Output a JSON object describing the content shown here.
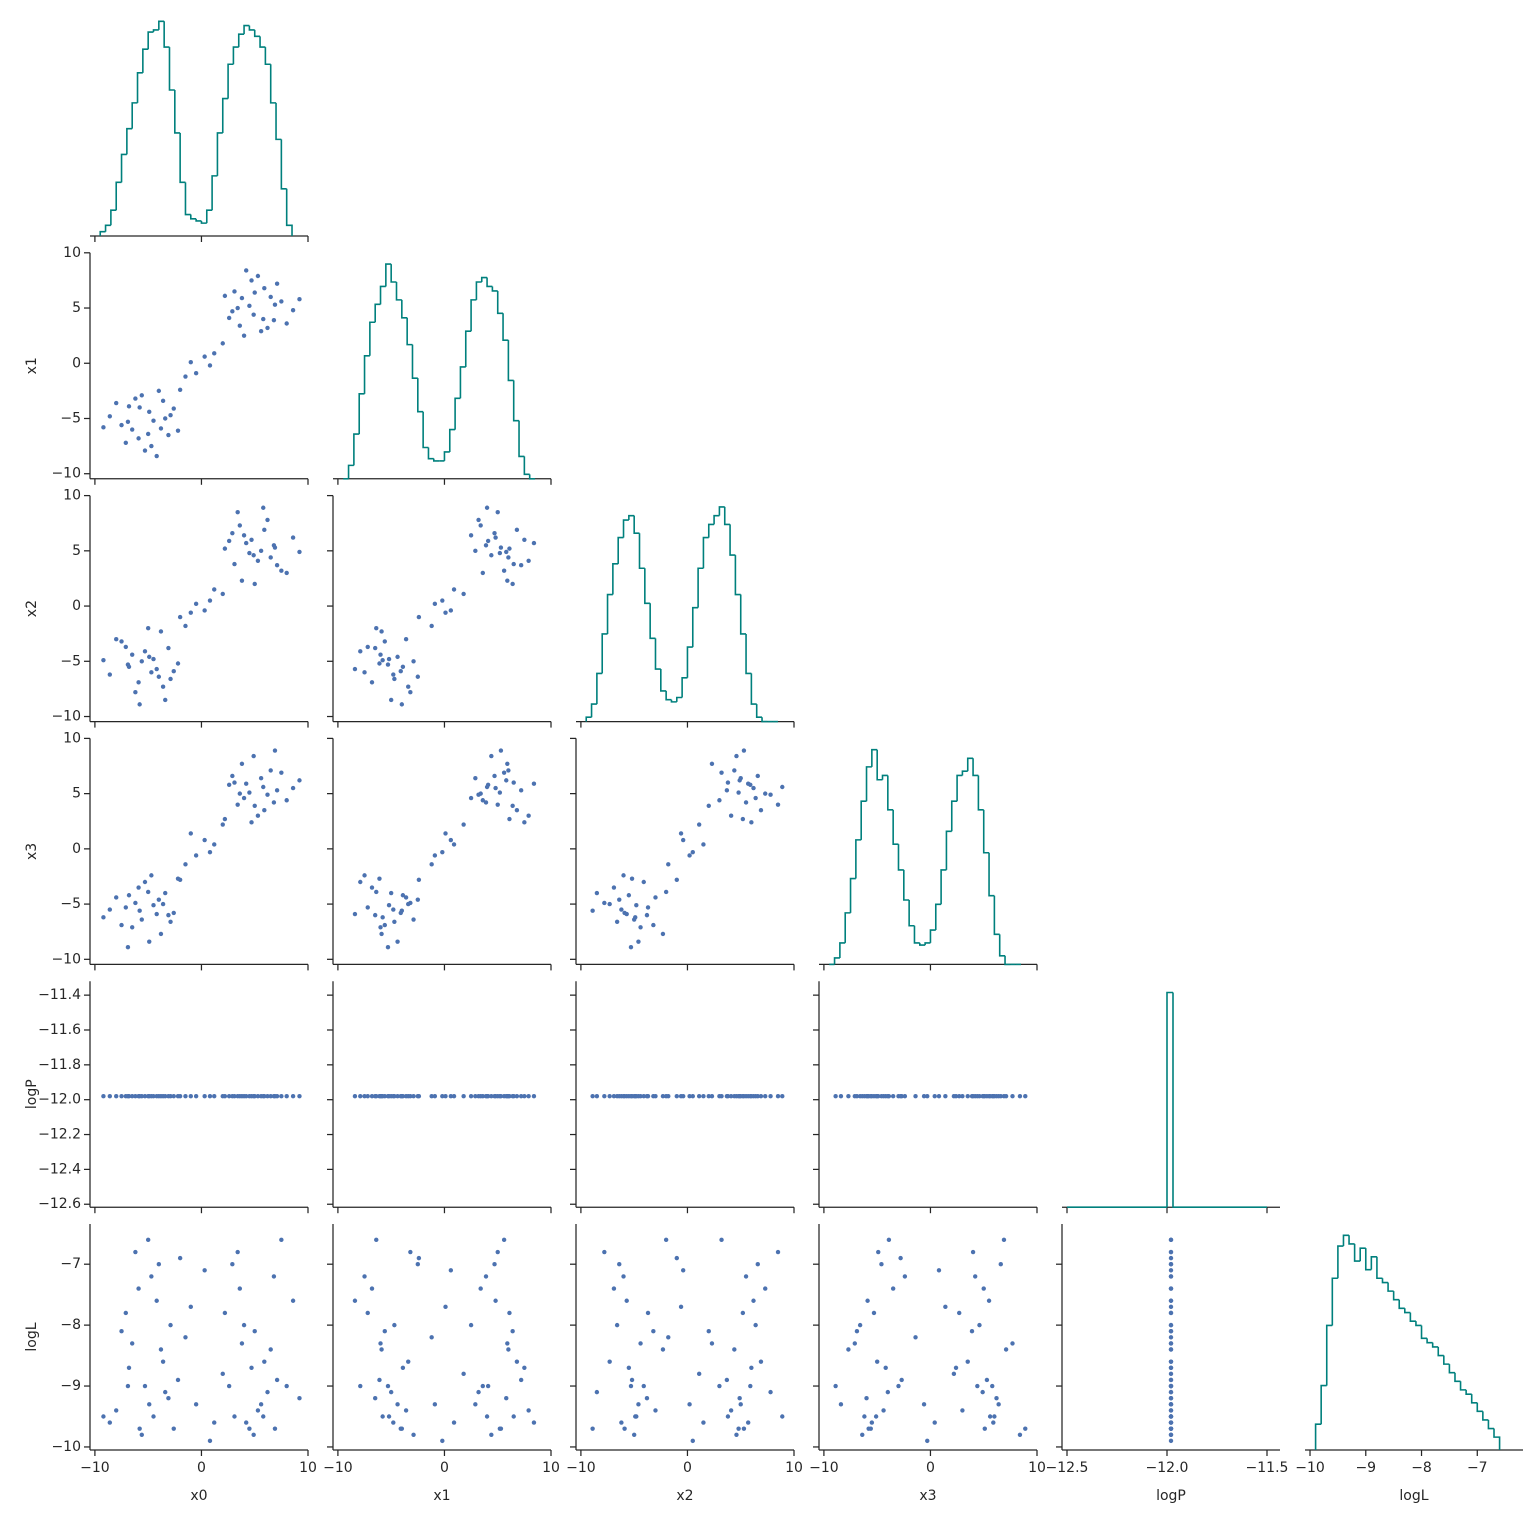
{
  "chart_data": {
    "type": "corner",
    "hist_color": "#00807d",
    "point_color": "#4c72b0",
    "variables": [
      {
        "name": "x0",
        "xlim": [
          -10.46,
          10.0
        ],
        "xticks": [
          {
            "value": -10,
            "label": "−10"
          },
          0,
          10
        ]
      },
      {
        "name": "x1",
        "xlim": [
          -10.46,
          10.0
        ],
        "ylim": [
          -10.46,
          10.0
        ],
        "xticks": [
          {
            "value": -10,
            "label": "−10"
          },
          0,
          10
        ],
        "yticks": [
          {
            "value": -10,
            "label": "−10"
          },
          {
            "value": -5,
            "label": "−5"
          },
          0,
          5,
          10
        ]
      },
      {
        "name": "x2",
        "xlim": [
          -10.46,
          10.0
        ],
        "ylim": [
          -10.46,
          10.0
        ],
        "xticks": [
          {
            "value": -10,
            "label": "−10"
          },
          0,
          10
        ],
        "yticks": [
          {
            "value": -10,
            "label": "−10"
          },
          {
            "value": -5,
            "label": "−5"
          },
          0,
          5,
          10
        ]
      },
      {
        "name": "x3",
        "xlim": [
          -10.46,
          10.0
        ],
        "ylim": [
          -10.46,
          10.0
        ],
        "xticks": [
          {
            "value": -10,
            "label": "−10"
          },
          0,
          10
        ],
        "yticks": [
          {
            "value": -10,
            "label": "−10"
          },
          {
            "value": -5,
            "label": "−5"
          },
          0,
          5,
          10
        ]
      },
      {
        "name": "logP",
        "xlim": [
          -12.525,
          -11.435
        ],
        "ylim": [
          -12.617,
          -11.32
        ],
        "xticks": [
          {
            "value": -12.5,
            "label": "−12.5"
          },
          {
            "value": -12,
            "label": "−12.0"
          },
          {
            "value": -11.5,
            "label": "−11.5"
          }
        ],
        "yticks": [
          {
            "value": -12.6,
            "label": "−12.6"
          },
          {
            "value": -12.4,
            "label": "−12.4"
          },
          {
            "value": -12.2,
            "label": "−12.2"
          },
          {
            "value": -12,
            "label": "−12.0"
          },
          {
            "value": -11.8,
            "label": "−11.8"
          },
          {
            "value": -11.6,
            "label": "−11.6"
          },
          {
            "value": -11.4,
            "label": "−11.4"
          }
        ]
      },
      {
        "name": "logL",
        "xlim": [
          -10.09,
          -6.18
        ],
        "ylim": [
          -10.05,
          -6.34
        ],
        "xticks": [
          {
            "value": -10,
            "label": "−10"
          },
          {
            "value": -9,
            "label": "−9"
          },
          {
            "value": -8,
            "label": "−8"
          },
          {
            "value": -7,
            "label": "−7"
          }
        ],
        "yticks": [
          {
            "value": -10,
            "label": "−10"
          },
          {
            "value": -9,
            "label": "−9"
          },
          {
            "value": -8,
            "label": "−8"
          },
          {
            "value": -7,
            "label": "−7"
          }
        ]
      }
    ],
    "histograms": [
      {
        "bins": [
          -9.5,
          -9,
          -8.5,
          -8,
          -7.5,
          -7,
          -6.5,
          -6,
          -5.5,
          -5,
          -4.5,
          -4,
          -3.5,
          -3,
          -2.5,
          -2,
          -1.5,
          -1,
          -0.5,
          0,
          0.5,
          1,
          1.5,
          2,
          2.5,
          3,
          3.5,
          4,
          4.5,
          5,
          5.5,
          6,
          6.5,
          7,
          7.5,
          8,
          8.5
        ],
        "counts": [
          2,
          5,
          12,
          25,
          38,
          50,
          62,
          76,
          87,
          95,
          96,
          100,
          88,
          68,
          48,
          25,
          10,
          8,
          7,
          6,
          12,
          28,
          48,
          64,
          80,
          88,
          94,
          98,
          96,
          93,
          88,
          80,
          62,
          45,
          22,
          5
        ]
      },
      {
        "bins": [
          -9.5,
          -9,
          -8.5,
          -8,
          -7.5,
          -7,
          -6.5,
          -6,
          -5.5,
          -5,
          -4.5,
          -4,
          -3.5,
          -3,
          -2.5,
          -2,
          -1.5,
          -1,
          -0.5,
          0,
          0.5,
          1,
          1.5,
          2,
          2.5,
          3,
          3.5,
          4,
          4.5,
          5,
          5.5,
          6,
          6.5,
          7,
          7.5,
          8,
          8.5
        ],
        "counts": [
          0,
          6,
          20,
          38,
          55,
          70,
          78,
          86,
          96,
          88,
          80,
          72,
          60,
          45,
          30,
          14,
          9,
          8,
          8,
          12,
          22,
          36,
          50,
          66,
          80,
          88,
          90,
          86,
          84,
          74,
          62,
          44,
          26,
          10,
          2,
          0
        ]
      },
      {
        "bins": [
          -9.5,
          -9,
          -8.5,
          -8,
          -7.5,
          -7,
          -6.5,
          -6,
          -5.5,
          -5,
          -4.5,
          -4,
          -3.5,
          -3,
          -2.5,
          -2,
          -1.5,
          -1,
          -0.5,
          0,
          0.5,
          1,
          1.5,
          2,
          2.5,
          3,
          3.5,
          4,
          4.5,
          5,
          5.5,
          6,
          6.5,
          7,
          7.5,
          8,
          8.5
        ],
        "counts": [
          2,
          8,
          22,
          40,
          58,
          72,
          84,
          92,
          94,
          86,
          70,
          54,
          38,
          24,
          14,
          10,
          9,
          11,
          20,
          34,
          52,
          70,
          84,
          90,
          94,
          98,
          90,
          76,
          58,
          40,
          22,
          8,
          2,
          0,
          0,
          0
        ]
      },
      {
        "bins": [
          -9.5,
          -9,
          -8.5,
          -8,
          -7.5,
          -7,
          -6.5,
          -6,
          -5.5,
          -5,
          -4.5,
          -4,
          -3.5,
          -3,
          -2.5,
          -2,
          -1.5,
          -1,
          -0.5,
          0,
          0.5,
          1,
          1.5,
          2,
          2.5,
          3,
          3.5,
          4,
          4.5,
          5,
          5.5,
          6,
          6.5,
          7,
          7.5,
          8,
          8.5
        ],
        "counts": [
          0,
          3,
          10,
          24,
          40,
          58,
          76,
          92,
          100,
          86,
          88,
          72,
          56,
          44,
          30,
          18,
          10,
          9,
          10,
          16,
          28,
          44,
          62,
          76,
          88,
          90,
          96,
          88,
          72,
          52,
          32,
          14,
          4,
          0,
          0,
          0
        ]
      },
      {
        "bins": [
          -12.5,
          -12,
          -11.97,
          -11.5
        ],
        "counts": [
          0,
          100,
          0
        ]
      },
      {
        "bins": [
          -9.9,
          -9.8,
          -9.7,
          -9.6,
          -9.5,
          -9.4,
          -9.3,
          -9.2,
          -9.1,
          -9.0,
          -8.9,
          -8.8,
          -8.7,
          -8.6,
          -8.5,
          -8.4,
          -8.3,
          -8.2,
          -8.1,
          -8.0,
          -7.9,
          -7.8,
          -7.7,
          -7.6,
          -7.5,
          -7.4,
          -7.3,
          -7.2,
          -7.1,
          -7.0,
          -6.9,
          -6.8,
          -6.7,
          -6.6
        ],
        "counts": [
          12,
          30,
          58,
          80,
          95,
          100,
          96,
          88,
          94,
          84,
          90,
          80,
          78,
          74,
          70,
          66,
          64,
          60,
          58,
          52,
          50,
          48,
          44,
          40,
          36,
          32,
          28,
          26,
          22,
          18,
          14,
          10,
          6
        ]
      }
    ],
    "samples": {
      "x0": [
        -4.5,
        -6.8,
        -3.1,
        -5.9,
        -2.6,
        -7.5,
        -4.0,
        -5.3,
        -8.6,
        -3.8,
        -6.2,
        -4.9,
        -2.2,
        -7.1,
        -5.6,
        -3.4,
        -6.5,
        -4.2,
        -8.0,
        -2.9,
        -5.0,
        -6.9,
        -3.6,
        -9.2,
        -4.7,
        -5.8,
        4.5,
        6.8,
        3.1,
        5.9,
        2.6,
        7.5,
        4.0,
        5.3,
        8.6,
        3.8,
        6.2,
        4.9,
        2.2,
        7.1,
        5.6,
        3.4,
        6.5,
        4.2,
        8.0,
        2.9,
        5.0,
        6.9,
        3.6,
        9.2,
        4.7,
        5.8,
        -1.5,
        -0.5,
        0.3,
        1.2,
        2.0,
        -2.0,
        0.8,
        -1.0
      ],
      "x1": [
        -5.2,
        -3.9,
        -6.5,
        -6.8,
        -4.1,
        -5.6,
        -2.5,
        -7.9,
        -4.8,
        -5.9,
        -3.2,
        -4.4,
        -6.1,
        -7.2,
        -2.9,
        -5.0,
        -6.0,
        -8.4,
        -3.6,
        -4.7,
        -6.4,
        -5.3,
        -3.4,
        -5.8,
        -7.5,
        -4.0,
        5.2,
        3.9,
        6.5,
        6.8,
        4.1,
        5.6,
        2.5,
        7.9,
        4.8,
        5.9,
        3.2,
        4.4,
        6.1,
        7.2,
        2.9,
        5.0,
        6.0,
        8.4,
        3.6,
        4.7,
        6.4,
        5.3,
        3.4,
        5.8,
        7.5,
        4.0,
        -1.2,
        -0.9,
        0.6,
        0.9,
        1.8,
        -2.4,
        -0.2,
        0.1
      ],
      "x2": [
        -4.8,
        -5.5,
        -3.8,
        -6.9,
        -5.9,
        -3.2,
        -6.4,
        -4.1,
        -6.2,
        -2.3,
        -7.8,
        -4.6,
        -5.2,
        -3.7,
        -5.0,
        -8.5,
        -4.4,
        -5.7,
        -3.0,
        -6.6,
        -2.0,
        -5.3,
        -7.3,
        -4.9,
        -6.0,
        -8.9,
        4.8,
        5.5,
        3.8,
        6.9,
        5.9,
        3.2,
        6.4,
        4.1,
        6.2,
        2.3,
        7.8,
        4.6,
        5.2,
        3.7,
        5.0,
        8.5,
        4.4,
        5.7,
        3.0,
        6.6,
        2.0,
        5.3,
        7.3,
        4.9,
        6.0,
        8.9,
        -1.8,
        0.2,
        -0.4,
        1.5,
        1.1,
        -1.0,
        0.5,
        -0.6
      ],
      "x3": [
        -5.1,
        -4.2,
        -6.0,
        -3.5,
        -5.8,
        -6.9,
        -4.6,
        -3.0,
        -5.5,
        -7.7,
        -4.9,
        -8.4,
        -2.7,
        -5.3,
        -6.4,
        -4.0,
        -7.1,
        -5.9,
        -4.4,
        -6.6,
        -3.9,
        -8.9,
        -5.0,
        -6.2,
        -2.4,
        -5.6,
        5.1,
        4.2,
        6.0,
        3.5,
        5.8,
        6.9,
        4.6,
        3.0,
        5.5,
        7.7,
        4.9,
        8.4,
        2.7,
        5.3,
        6.4,
        4.0,
        7.1,
        5.9,
        4.4,
        6.6,
        3.9,
        8.9,
        5.0,
        6.2,
        2.4,
        5.6,
        -1.4,
        -0.6,
        0.8,
        0.4,
        2.2,
        -2.8,
        -0.3,
        1.4
      ],
      "logP": [
        -11.98,
        -11.98,
        -11.98,
        -11.98,
        -11.98,
        -11.98,
        -11.98,
        -11.98,
        -11.98,
        -11.98,
        -11.98,
        -11.98,
        -11.98,
        -11.98,
        -11.98,
        -11.98,
        -11.98,
        -11.98,
        -11.98,
        -11.98,
        -11.98,
        -11.98,
        -11.98,
        -11.98,
        -11.98,
        -11.98,
        -11.98,
        -11.98,
        -11.98,
        -11.98,
        -11.98,
        -11.98,
        -11.98,
        -11.98,
        -11.98,
        -11.98,
        -11.98,
        -11.98,
        -11.98,
        -11.98,
        -11.98,
        -11.98,
        -11.98,
        -11.98,
        -11.98,
        -11.98,
        -11.98,
        -11.98,
        -11.98,
        -11.98,
        -11.98,
        -11.98,
        -11.98,
        -11.98,
        -11.98,
        -11.98,
        -11.98,
        -11.98,
        -11.98,
        -11.98
      ],
      "logL": [
        -9.5,
        -8.7,
        -9.2,
        -7.4,
        -9.7,
        -8.1,
        -7.0,
        -9.0,
        -9.6,
        -8.4,
        -6.8,
        -9.3,
        -8.9,
        -7.8,
        -9.8,
        -9.1,
        -8.3,
        -7.6,
        -9.4,
        -8.0,
        -6.6,
        -9.0,
        -8.6,
        -9.5,
        -7.2,
        -9.7,
        -9.7,
        -7.2,
        -9.5,
        -8.6,
        -9.0,
        -6.6,
        -8.0,
        -9.4,
        -7.6,
        -8.3,
        -9.1,
        -9.8,
        -7.8,
        -8.9,
        -9.3,
        -6.8,
        -8.4,
        -9.6,
        -9.0,
        -7.0,
        -8.1,
        -9.7,
        -7.4,
        -9.2,
        -8.7,
        -9.5,
        -8.2,
        -9.3,
        -7.1,
        -9.6,
        -8.8,
        -6.9,
        -9.9,
        -7.7
      ]
    }
  }
}
